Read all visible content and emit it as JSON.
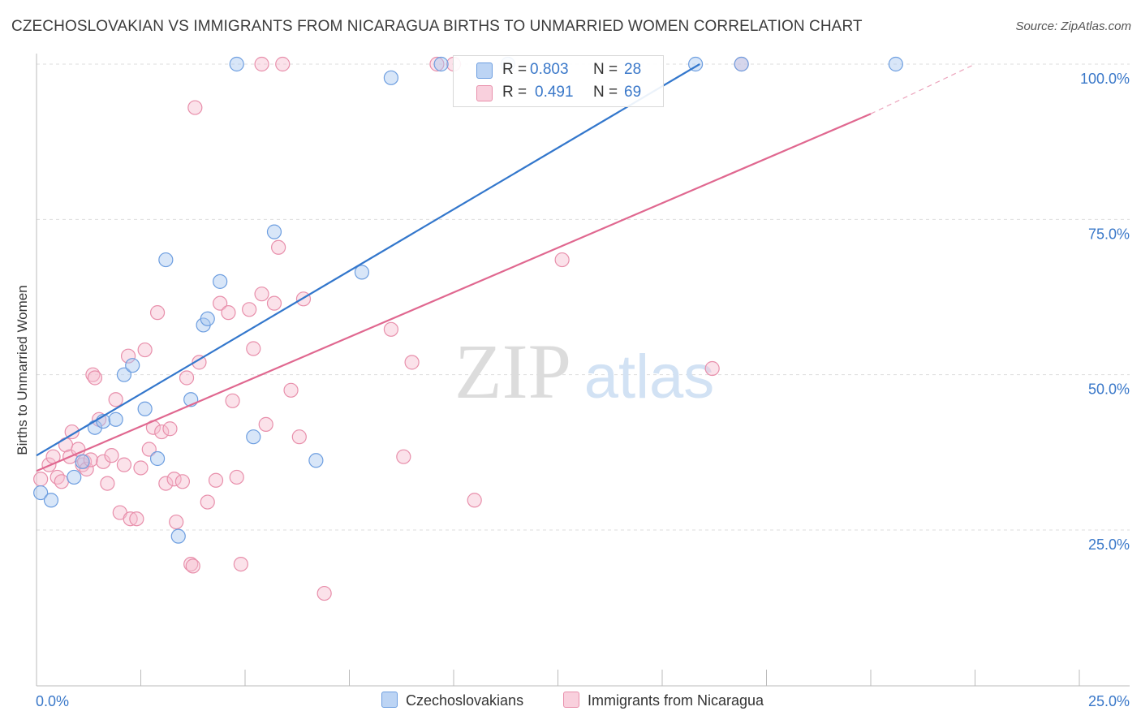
{
  "title": "CZECHOSLOVAKIAN VS IMMIGRANTS FROM NICARAGUA BIRTHS TO UNMARRIED WOMEN CORRELATION CHART",
  "source": "Source: ZipAtlas.com",
  "watermark": {
    "zip": "ZIP",
    "atlas": "atlas"
  },
  "legend": {
    "rows": [
      {
        "r_label": "R =",
        "r_value": "0.803",
        "n_label": "N =",
        "n_value": "28",
        "color": "#a9c8f0",
        "border": "#6d9ee0"
      },
      {
        "r_label": "R =",
        "r_value": "0.491",
        "n_label": "N =",
        "n_value": "69",
        "color": "#f6bfd0",
        "border": "#e88fab"
      }
    ]
  },
  "bottom_legend": [
    "Czechoslovakians",
    "Immigrants from Nicaragua"
  ],
  "chart_data": {
    "type": "scatter",
    "title": "CZECHOSLOVAKIAN VS IMMIGRANTS FROM NICARAGUA BIRTHS TO UNMARRIED WOMEN CORRELATION CHART",
    "xlabel": "",
    "ylabel": "Births to Unmarried Women",
    "xlim": [
      0,
      25
    ],
    "ylim": [
      0,
      100
    ],
    "x_tick_labels": [
      "0.0%",
      "25.0%"
    ],
    "y_tick_labels": [
      "25.0%",
      "50.0%",
      "75.0%",
      "100.0%"
    ],
    "y_ticks": [
      25,
      50,
      75,
      100
    ],
    "grid": true,
    "legend_position": "top-center",
    "series": [
      {
        "name": "Czechoslovakians",
        "color": "#6d9ee0",
        "fill": "#a9c8f0",
        "line_color": "#3377cc",
        "trend": {
          "x0": 0,
          "y0": 37,
          "x1": 15.9,
          "y1": 100
        },
        "points": [
          [
            0.1,
            31
          ],
          [
            0.35,
            29.8
          ],
          [
            0.9,
            33.5
          ],
          [
            1.1,
            36
          ],
          [
            1.4,
            41.5
          ],
          [
            1.6,
            42.5
          ],
          [
            1.9,
            42.8
          ],
          [
            2.1,
            50
          ],
          [
            2.3,
            51.5
          ],
          [
            2.6,
            44.5
          ],
          [
            2.9,
            36.5
          ],
          [
            3.1,
            68.5
          ],
          [
            3.4,
            24
          ],
          [
            3.7,
            46
          ],
          [
            4.0,
            58
          ],
          [
            4.1,
            59
          ],
          [
            4.4,
            65
          ],
          [
            5.2,
            40
          ],
          [
            5.7,
            73
          ],
          [
            6.7,
            36.2
          ],
          [
            7.8,
            66.5
          ],
          [
            8.5,
            97.8
          ],
          [
            4.8,
            100
          ],
          [
            9.7,
            100
          ],
          [
            11.3,
            100
          ],
          [
            15.8,
            100
          ],
          [
            16.9,
            100
          ],
          [
            20.6,
            100
          ]
        ]
      },
      {
        "name": "Immigrants from Nicaragua",
        "color": "#e88fab",
        "fill": "#f6bfd0",
        "line_color": "#e06890",
        "trend": {
          "x0": 0,
          "y0": 34.5,
          "x1": 20,
          "y1": 92
        },
        "trend_dashed": {
          "x0": 20,
          "y0": 92,
          "x1": 22.5,
          "y1": 100
        },
        "points": [
          [
            0.1,
            33.2
          ],
          [
            0.3,
            35.5
          ],
          [
            0.4,
            36.8
          ],
          [
            0.5,
            33.5
          ],
          [
            0.6,
            32.8
          ],
          [
            0.7,
            38.7
          ],
          [
            0.8,
            36.8
          ],
          [
            0.85,
            40.8
          ],
          [
            1.0,
            38
          ],
          [
            1.1,
            35.5
          ],
          [
            1.15,
            36
          ],
          [
            1.2,
            34.8
          ],
          [
            1.3,
            36.3
          ],
          [
            1.35,
            50
          ],
          [
            1.4,
            49.5
          ],
          [
            1.5,
            42.8
          ],
          [
            1.6,
            36
          ],
          [
            1.7,
            32.5
          ],
          [
            1.8,
            37
          ],
          [
            1.9,
            46
          ],
          [
            2.0,
            27.8
          ],
          [
            2.1,
            35.5
          ],
          [
            2.2,
            53
          ],
          [
            2.25,
            26.8
          ],
          [
            2.4,
            26.8
          ],
          [
            2.5,
            35
          ],
          [
            2.6,
            54
          ],
          [
            2.7,
            38
          ],
          [
            2.8,
            41.5
          ],
          [
            2.9,
            60
          ],
          [
            3.0,
            40.8
          ],
          [
            3.1,
            32.5
          ],
          [
            3.2,
            41.3
          ],
          [
            3.3,
            33.2
          ],
          [
            3.35,
            26.3
          ],
          [
            3.5,
            32.8
          ],
          [
            3.6,
            49.5
          ],
          [
            3.7,
            19.5
          ],
          [
            3.75,
            19.2
          ],
          [
            3.8,
            93
          ],
          [
            3.9,
            52
          ],
          [
            4.1,
            29.5
          ],
          [
            4.3,
            33
          ],
          [
            4.4,
            61.5
          ],
          [
            4.6,
            60
          ],
          [
            4.7,
            45.8
          ],
          [
            4.8,
            33.5
          ],
          [
            4.9,
            19.5
          ],
          [
            5.1,
            60.5
          ],
          [
            5.2,
            54.2
          ],
          [
            5.4,
            63
          ],
          [
            5.5,
            42
          ],
          [
            5.7,
            61.5
          ],
          [
            5.8,
            70.5
          ],
          [
            6.1,
            47.5
          ],
          [
            6.3,
            40
          ],
          [
            6.4,
            62.2
          ],
          [
            6.9,
            14.8
          ],
          [
            8.5,
            57.3
          ],
          [
            8.8,
            36.8
          ],
          [
            9.0,
            52
          ],
          [
            10.5,
            29.8
          ],
          [
            12.6,
            68.5
          ],
          [
            16.2,
            51
          ],
          [
            5.4,
            100
          ],
          [
            5.9,
            100
          ],
          [
            9.6,
            100
          ],
          [
            10.0,
            100
          ],
          [
            16.9,
            100
          ]
        ]
      }
    ]
  }
}
